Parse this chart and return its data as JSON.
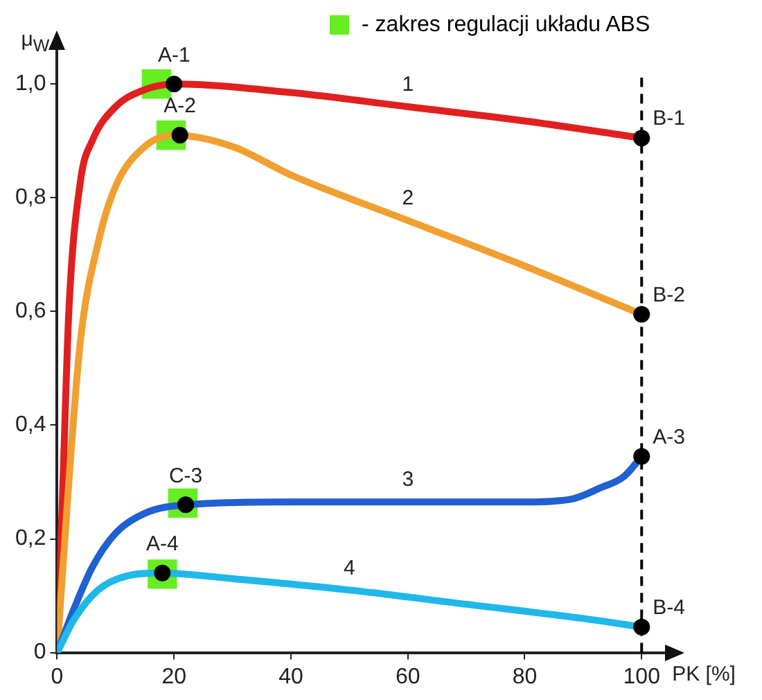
{
  "chart_data": {
    "type": "line",
    "xlabel": "PK [%]",
    "ylabel": "μ$_{W}$",
    "xlim": [
      0,
      104
    ],
    "xticks": [
      0,
      20,
      40,
      60,
      80,
      100
    ],
    "ylim": [
      0,
      1.06
    ],
    "yticks": [
      {
        "value": 0,
        "label": "0"
      },
      {
        "value": 0.2,
        "label": "0,2"
      },
      {
        "value": 0.4,
        "label": "0,4"
      },
      {
        "value": 0.6,
        "label": "0,6"
      },
      {
        "value": 0.8,
        "label": "0,8"
      },
      {
        "value": 1.0,
        "label": "1,0"
      }
    ],
    "grid": false,
    "legend": "top right",
    "marker": "none",
    "line_style": "solid",
    "series": [
      {
        "type": "scatter",
        "name": "- zakres regulacji układu ABS",
        "color": "#66ee22",
        "marker": "square",
        "x": [
          17,
          19.5,
          21.5,
          18
        ],
        "values": [
          1.0,
          0.91,
          0.263,
          0.138
        ]
      },
      {
        "name": "1",
        "color": "#e02020",
        "x": [
          0,
          1,
          2,
          4,
          6,
          10,
          15,
          20,
          40,
          60,
          80,
          100
        ],
        "values": [
          0,
          0.3,
          0.6,
          0.83,
          0.9,
          0.96,
          0.99,
          1.0,
          0.985,
          0.96,
          0.935,
          0.905
        ]
      },
      {
        "name": "2",
        "color": "#f0a030",
        "x": [
          0,
          2,
          4,
          7,
          10,
          15,
          20,
          30,
          40,
          60,
          80,
          100
        ],
        "values": [
          0,
          0.3,
          0.55,
          0.72,
          0.82,
          0.89,
          0.91,
          0.89,
          0.84,
          0.76,
          0.68,
          0.595
        ]
      },
      {
        "name": "3",
        "color": "#2060d0",
        "x": [
          0,
          3,
          6,
          10,
          15,
          22,
          40,
          60,
          80,
          88,
          93,
          97,
          100
        ],
        "values": [
          0,
          0.08,
          0.15,
          0.21,
          0.245,
          0.26,
          0.265,
          0.265,
          0.265,
          0.27,
          0.29,
          0.31,
          0.345
        ]
      },
      {
        "name": "4",
        "color": "#20b8e8",
        "x": [
          0,
          3,
          7,
          12,
          18,
          30,
          50,
          70,
          90,
          100
        ],
        "values": [
          0,
          0.06,
          0.11,
          0.135,
          0.14,
          0.13,
          0.11,
          0.085,
          0.06,
          0.045
        ]
      },
      {
        "type": "scatter",
        "color": "#000000",
        "marker": "circle",
        "x": [
          20,
          21,
          22,
          18,
          100,
          100,
          100,
          100
        ],
        "values": [
          1.0,
          0.91,
          0.26,
          0.14,
          0.905,
          0.595,
          0.345,
          0.045
        ]
      }
    ],
    "ref_lines": [
      {
        "axis": "x",
        "value": 100,
        "color": "#000000",
        "line_style": "dashed"
      }
    ],
    "annotations": [
      {
        "text": "A-1",
        "x": 20,
        "y": 1.0
      },
      {
        "text": "A-2",
        "x": 21,
        "y": 0.91
      },
      {
        "text": "C-3",
        "x": 22,
        "y": 0.26
      },
      {
        "text": "A-4",
        "x": 18,
        "y": 0.14
      },
      {
        "text": "B-1",
        "x": 100,
        "y": 0.905
      },
      {
        "text": "B-2",
        "x": 100,
        "y": 0.595
      },
      {
        "text": "A-3",
        "x": 100,
        "y": 0.345
      },
      {
        "text": "B-4",
        "x": 100,
        "y": 0.045
      }
    ]
  }
}
